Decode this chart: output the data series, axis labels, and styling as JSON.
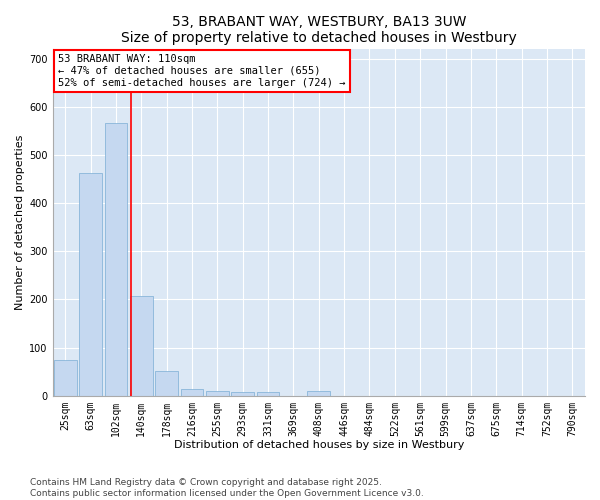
{
  "title": "53, BRABANT WAY, WESTBURY, BA13 3UW",
  "subtitle": "Size of property relative to detached houses in Westbury",
  "xlabel": "Distribution of detached houses by size in Westbury",
  "ylabel": "Number of detached properties",
  "categories": [
    "25sqm",
    "63sqm",
    "102sqm",
    "140sqm",
    "178sqm",
    "216sqm",
    "255sqm",
    "293sqm",
    "331sqm",
    "369sqm",
    "408sqm",
    "446sqm",
    "484sqm",
    "522sqm",
    "561sqm",
    "599sqm",
    "637sqm",
    "675sqm",
    "714sqm",
    "752sqm",
    "790sqm"
  ],
  "values": [
    75,
    462,
    567,
    207,
    52,
    15,
    10,
    8,
    8,
    0,
    10,
    0,
    0,
    0,
    0,
    0,
    0,
    0,
    0,
    0,
    0
  ],
  "bar_color": "#c5d8f0",
  "bar_edge_color": "#7aadd4",
  "red_line_x": 2.58,
  "annotation_text": "53 BRABANT WAY: 110sqm\n← 47% of detached houses are smaller (655)\n52% of semi-detached houses are larger (724) →",
  "annotation_box_color": "white",
  "annotation_box_edge_color": "red",
  "ylim": [
    0,
    720
  ],
  "yticks": [
    0,
    100,
    200,
    300,
    400,
    500,
    600,
    700
  ],
  "background_color": "#dce8f5",
  "grid_color": "white",
  "footer_line1": "Contains HM Land Registry data © Crown copyright and database right 2025.",
  "footer_line2": "Contains public sector information licensed under the Open Government Licence v3.0.",
  "title_fontsize": 10,
  "xlabel_fontsize": 8,
  "ylabel_fontsize": 8,
  "tick_fontsize": 7,
  "annotation_fontsize": 7.5,
  "footer_fontsize": 6.5
}
